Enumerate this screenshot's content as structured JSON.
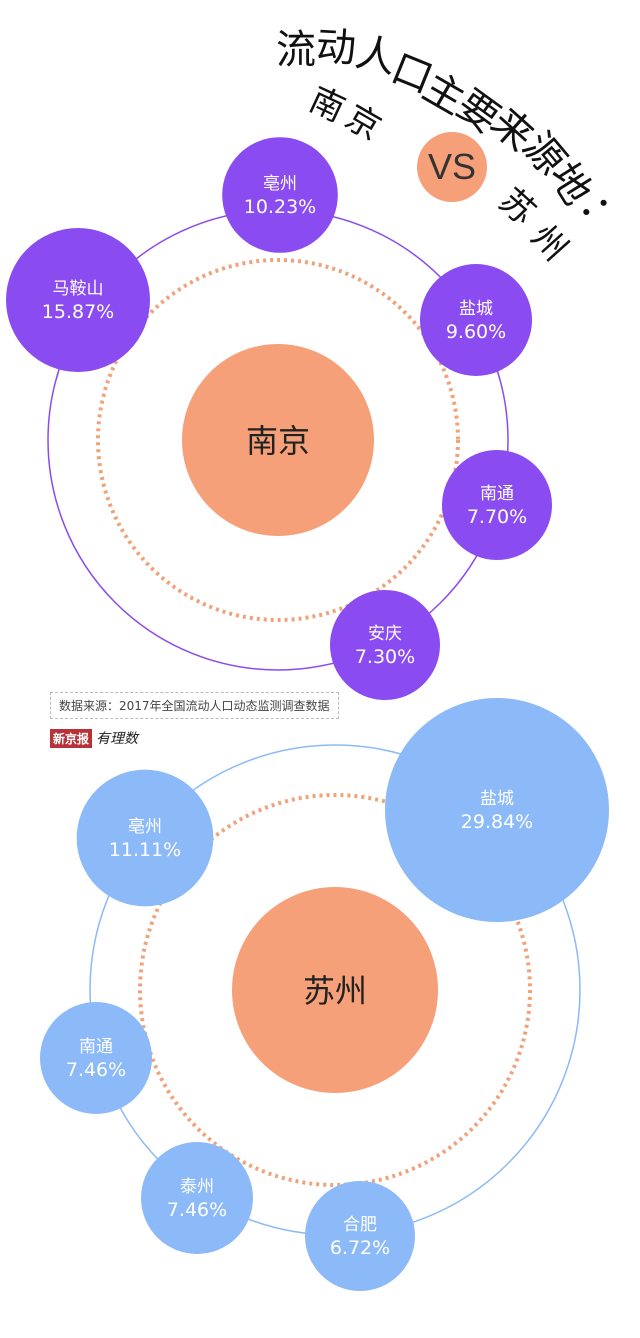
{
  "title": {
    "chars": [
      "流",
      "动",
      "人",
      "口",
      "主",
      "要",
      "来",
      "源",
      "地",
      "："
    ],
    "left_city": [
      "南",
      "京"
    ],
    "vs": "VS",
    "right_city": [
      "苏",
      "州"
    ]
  },
  "source": "数据来源：2017年全国流动人口动态监测调查数据",
  "logo": {
    "brand": "新京报",
    "column": "有理数"
  },
  "colors": {
    "nanjing": "#8a4bf1",
    "suzhou": "#8cbaf8",
    "center": "#f6a07a",
    "dotted": "#f0a27a"
  },
  "chart_data": [
    {
      "type": "bubble",
      "center": "南京",
      "categories": [
        "亳州",
        "马鞍山",
        "盐城",
        "南通",
        "安庆"
      ],
      "values": [
        "10.23%",
        "15.87%",
        "9.60%",
        "7.70%",
        "7.30%"
      ],
      "numeric_values": [
        10.23,
        15.87,
        9.6,
        7.7,
        7.3
      ]
    },
    {
      "type": "bubble",
      "center": "苏州",
      "categories": [
        "盐城",
        "亳州",
        "南通",
        "泰州",
        "合肥"
      ],
      "values": [
        "29.84%",
        "11.11%",
        "7.46%",
        "7.46%",
        "6.72%"
      ],
      "numeric_values": [
        29.84,
        11.11,
        7.46,
        7.46,
        6.72
      ]
    }
  ]
}
